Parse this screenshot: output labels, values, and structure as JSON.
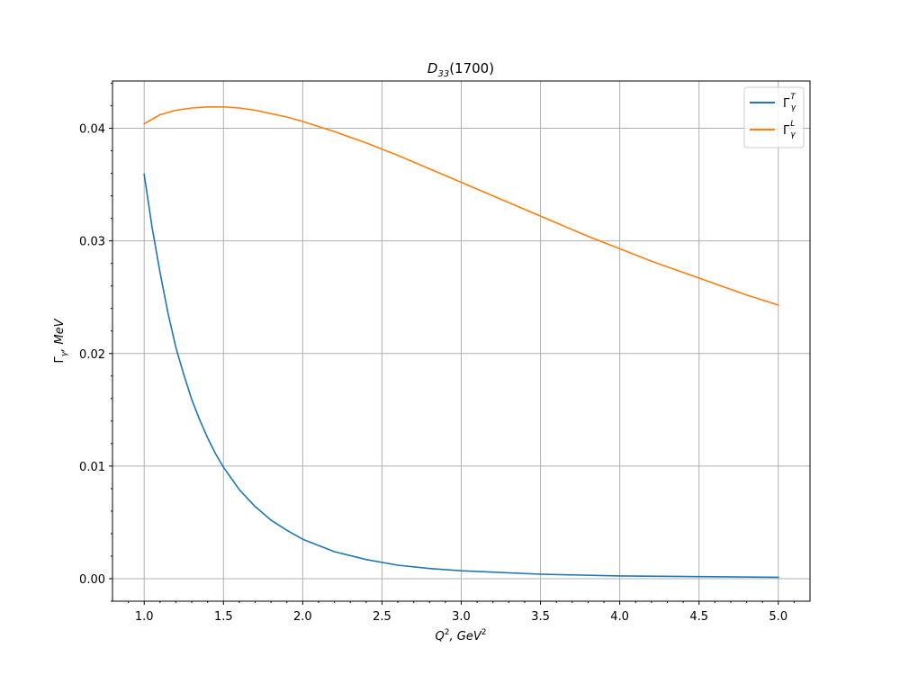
{
  "chart_data": {
    "type": "line",
    "title": {
      "base": "D",
      "sub": "33",
      "rest": "(1700)"
    },
    "xlabel": {
      "q": "Q",
      "sup1": "2",
      "mid": ", GeV",
      "sup2": "2"
    },
    "ylabel": {
      "gamma": "Γ",
      "sub": "γ",
      "rest": ", MeV"
    },
    "xlim": [
      0.8,
      5.2
    ],
    "ylim": [
      -0.002,
      0.0442
    ],
    "grid": true,
    "legend_position": "top-right",
    "x_ticks": [
      1.0,
      1.5,
      2.0,
      2.5,
      3.0,
      3.5,
      4.0,
      4.5,
      5.0
    ],
    "x_tick_labels": [
      "1.0",
      "1.5",
      "2.0",
      "2.5",
      "3.0",
      "3.5",
      "4.0",
      "4.5",
      "5.0"
    ],
    "y_ticks": [
      0.0,
      0.01,
      0.02,
      0.03,
      0.04
    ],
    "y_tick_labels": [
      "0.00",
      "0.01",
      "0.02",
      "0.03",
      "0.04"
    ],
    "series": [
      {
        "legend": {
          "gamma": "Γ",
          "sup": "T",
          "sub": "γ"
        },
        "color": "#1f77b4",
        "x": [
          1.0,
          1.05,
          1.1,
          1.15,
          1.2,
          1.25,
          1.3,
          1.35,
          1.4,
          1.45,
          1.5,
          1.6,
          1.7,
          1.8,
          1.9,
          2.0,
          2.2,
          2.4,
          2.6,
          2.8,
          3.0,
          3.5,
          4.0,
          4.5,
          5.0
        ],
        "y": [
          0.0359,
          0.0312,
          0.0272,
          0.0236,
          0.0205,
          0.0181,
          0.0159,
          0.0141,
          0.0125,
          0.0111,
          0.0099,
          0.0079,
          0.0064,
          0.0052,
          0.0043,
          0.0035,
          0.0024,
          0.0017,
          0.0012,
          0.0009,
          0.0007,
          0.0004,
          0.00025,
          0.00018,
          0.00013
        ]
      },
      {
        "legend": {
          "gamma": "Γ",
          "sup": "L",
          "sub": "γ"
        },
        "color": "#ff7f0e",
        "x": [
          1.0,
          1.1,
          1.2,
          1.3,
          1.4,
          1.5,
          1.6,
          1.7,
          1.8,
          1.9,
          2.0,
          2.2,
          2.4,
          2.6,
          2.8,
          3.0,
          3.2,
          3.4,
          3.6,
          3.8,
          4.0,
          4.2,
          4.4,
          4.6,
          4.8,
          5.0
        ],
        "y": [
          0.0404,
          0.0412,
          0.0416,
          0.0418,
          0.0419,
          0.0419,
          0.0418,
          0.0416,
          0.0413,
          0.041,
          0.0406,
          0.0397,
          0.0387,
          0.0376,
          0.0364,
          0.0352,
          0.034,
          0.0328,
          0.0316,
          0.0304,
          0.0293,
          0.0282,
          0.0272,
          0.0262,
          0.0252,
          0.0243
        ]
      }
    ]
  }
}
